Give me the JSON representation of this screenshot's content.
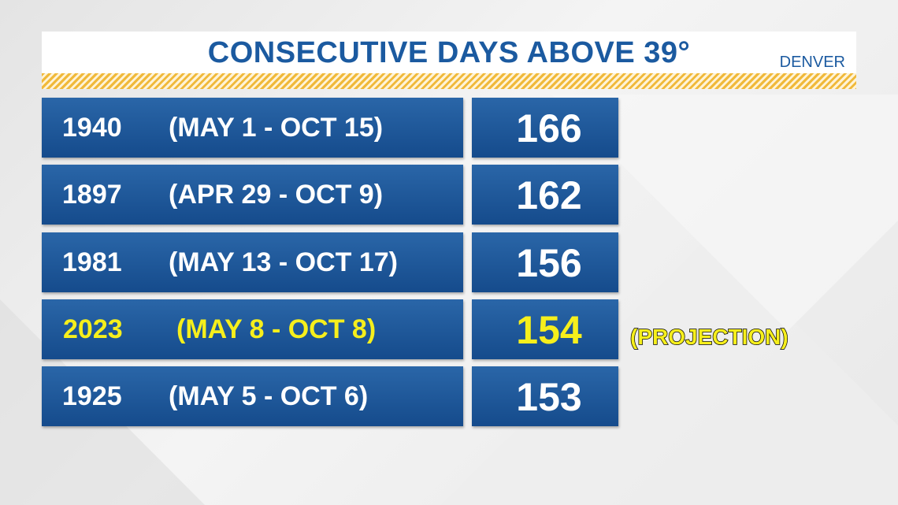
{
  "header": {
    "title": "CONSECUTIVE DAYS ABOVE 39°",
    "location": "DENVER"
  },
  "table": {
    "rows": [
      {
        "year": "1940",
        "dates": "(MAY 1 - OCT 15)",
        "days": 166
      },
      {
        "year": "1897",
        "dates": "(APR 29 - OCT 9)",
        "days": 162
      },
      {
        "year": "1981",
        "dates": "(MAY 13 - OCT 17)",
        "days": 156
      },
      {
        "year": "2023",
        "dates": "(MAY 8 - OCT 8)",
        "days": 154,
        "note": "(PROJECTION)",
        "highlight": true
      },
      {
        "year": "1925",
        "dates": "(MAY 5 - OCT 6)",
        "days": 153
      }
    ]
  }
}
